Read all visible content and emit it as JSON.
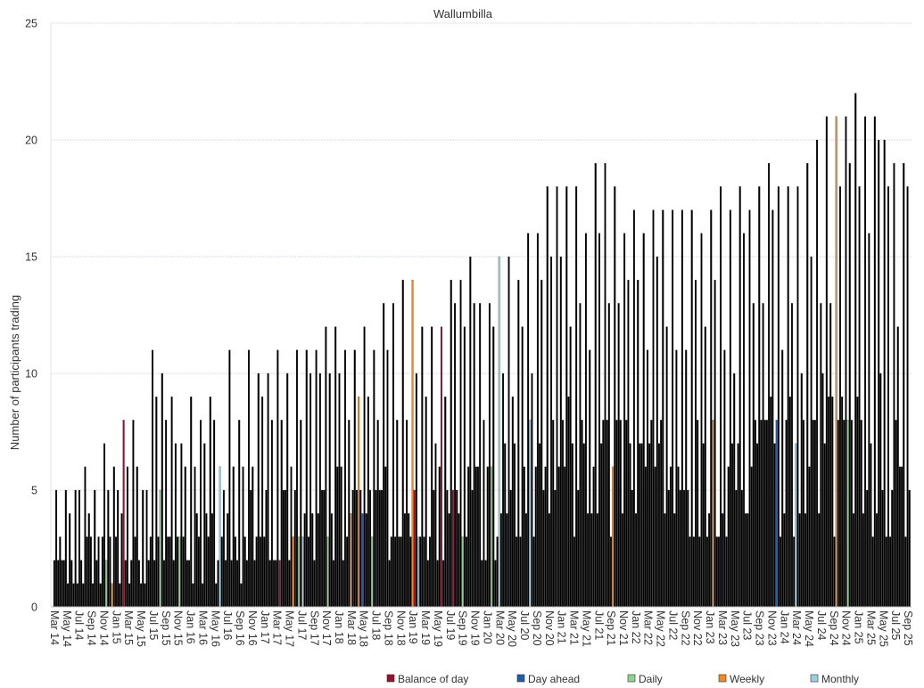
{
  "chart_data": {
    "type": "bar",
    "title": "Wallumbilla",
    "ylabel": "Number of participants trading",
    "xlabel": "",
    "ylim": [
      0,
      25
    ],
    "yticks": [
      "0",
      "5",
      "10",
      "15",
      "20",
      "25"
    ],
    "xtick_labels": [
      "Mar 14",
      "May 14",
      "Jul 14",
      "Sep 14",
      "Nov 14",
      "Jan 15",
      "Mar 15",
      "May 15",
      "Jul 15",
      "Sep 15",
      "Nov 15",
      "Jan 16",
      "Mar 16",
      "May 16",
      "Jul 16",
      "Sep 16",
      "Nov 16",
      "Jan 17",
      "Mar 17",
      "May 17",
      "Jul 17",
      "Sep 17",
      "Nov 17",
      "Jan 18",
      "Mar 18",
      "May 18",
      "Jul 18",
      "Sep 18",
      "Nov 18",
      "Jan 19",
      "Mar 19",
      "May 19",
      "Jul 19",
      "Sep 19",
      "Nov 19",
      "Jan 20",
      "Mar 20",
      "May 20",
      "Jul 20",
      "Sep 20",
      "Nov 20",
      "Jan 21",
      "Mar 21",
      "May 21",
      "Jul 21",
      "Sep 21",
      "Nov 21",
      "Jan 22",
      "Mar 22",
      "May 22",
      "Jul 22",
      "Sep 22",
      "Nov 22",
      "Jan 23",
      "Mar 23",
      "May 23",
      "Jul 23",
      "Sep 23",
      "Nov 23",
      "Jan 24",
      "Mar 24",
      "May 24",
      "Jul 24",
      "Sep 24",
      "Nov 24",
      "Jan 25",
      "Mar 25",
      "May 25",
      "Jul 25",
      "Sep 25"
    ],
    "grid": true,
    "legend_position": "bottom",
    "series": [
      {
        "name": "Balance of day",
        "color": "#9a0f2e"
      },
      {
        "name": "Day ahead",
        "color": "#1f5fa8"
      },
      {
        "name": "Daily",
        "color": "#8fd18f"
      },
      {
        "name": "Weekly",
        "color": "#f0892a"
      },
      {
        "name": "Monthly",
        "color": "#9ecfe0"
      }
    ],
    "monthly_peak": [
      5,
      5,
      5,
      6,
      5,
      7,
      6,
      8,
      8,
      5,
      11,
      10,
      9,
      7,
      9,
      8,
      9,
      6,
      11,
      8,
      11,
      10,
      10,
      11,
      10,
      11,
      11,
      11,
      12,
      12,
      11,
      11,
      12,
      11,
      13,
      13,
      14,
      14,
      12,
      12,
      12,
      14,
      14,
      15,
      13,
      13,
      15,
      15,
      14,
      16,
      16,
      18,
      18,
      18,
      18,
      16,
      19,
      19,
      18,
      16,
      17,
      16,
      17,
      17,
      17,
      17,
      17,
      16,
      17,
      18,
      17,
      18,
      17,
      18,
      19,
      18,
      18,
      18,
      19,
      20,
      21,
      21,
      21,
      22,
      21,
      21,
      20,
      19,
      19
    ]
  }
}
